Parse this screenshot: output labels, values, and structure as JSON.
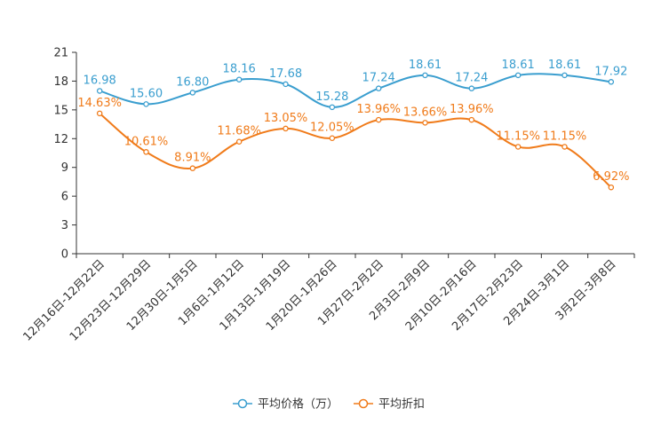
{
  "chart_data": {
    "type": "line",
    "categories": [
      "12月16日-12月22日",
      "12月23日-12月29日",
      "12月30日-1月5日",
      "1月6日-1月12日",
      "1月13日-1月19日",
      "1月20日-1月26日",
      "1月27日-2月2日",
      "2月3日-2月9日",
      "2月10日-2月16日",
      "2月17日-2月23日",
      "2月24日-3月1日",
      "3月2日-3月8日"
    ],
    "series": [
      {
        "name": "平均价格（万）",
        "color": "#3a9ecf",
        "values": [
          16.98,
          15.6,
          16.8,
          18.16,
          17.68,
          15.28,
          17.24,
          18.61,
          17.24,
          18.61,
          18.61,
          17.92
        ],
        "labels": [
          "16.98",
          "15.60",
          "16.80",
          "18.16",
          "17.68",
          "15.28",
          "17.24",
          "18.61",
          "17.24",
          "18.61",
          "18.61",
          "17.92"
        ]
      },
      {
        "name": "平均折扣",
        "color": "#f07b1a",
        "values": [
          14.63,
          10.61,
          8.91,
          11.68,
          13.05,
          12.05,
          13.96,
          13.66,
          13.96,
          11.15,
          11.15,
          6.92
        ],
        "labels": [
          "14.63%",
          "10.61%",
          "8.91%",
          "11.68%",
          "13.05%",
          "12.05%",
          "13.96%",
          "13.66%",
          "13.96%",
          "11.15%",
          "11.15%",
          "6.92%"
        ]
      }
    ],
    "y_ticks": [
      "0",
      "3",
      "6",
      "9",
      "12",
      "15",
      "18",
      "21"
    ],
    "ylim": [
      0,
      21
    ],
    "legend_position": "bottom-center",
    "title": "",
    "xlabel": "",
    "ylabel": ""
  }
}
